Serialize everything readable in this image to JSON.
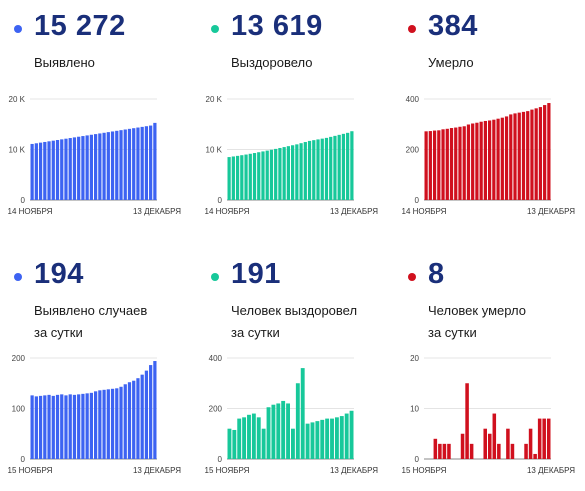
{
  "panels": [
    {
      "value": "15 272",
      "label": "Выявлено",
      "color": "#3d63f2",
      "chart_data": {
        "type": "bar",
        "ylim": [
          0,
          20000
        ],
        "yticks": [
          {
            "v": 0,
            "t": "0"
          },
          {
            "v": 10000,
            "t": "10 K"
          },
          {
            "v": 20000,
            "t": "20 K"
          }
        ],
        "x_start_label": "14 НОЯБРЯ",
        "x_end_label": "13 ДЕКАБРЯ",
        "values": [
          11100,
          11230,
          11360,
          11490,
          11620,
          11750,
          11880,
          12010,
          12140,
          12270,
          12400,
          12530,
          12660,
          12790,
          12920,
          13050,
          13180,
          13310,
          13440,
          13570,
          13700,
          13830,
          13960,
          14090,
          14220,
          14350,
          14480,
          14610,
          14740,
          15272
        ]
      }
    },
    {
      "value": "13 619",
      "label": "Выздоровело",
      "color": "#17c89a",
      "chart_data": {
        "type": "bar",
        "ylim": [
          0,
          20000
        ],
        "yticks": [
          {
            "v": 0,
            "t": "0"
          },
          {
            "v": 10000,
            "t": "10 K"
          },
          {
            "v": 20000,
            "t": "20 K"
          }
        ],
        "x_start_label": "14 НОЯБРЯ",
        "x_end_label": "13 ДЕКАБРЯ",
        "values": [
          8500,
          8620,
          8740,
          8870,
          9000,
          9150,
          9300,
          9460,
          9620,
          9780,
          9950,
          10120,
          10300,
          10480,
          10660,
          10840,
          11020,
          11250,
          11480,
          11700,
          11850,
          12000,
          12150,
          12300,
          12500,
          12700,
          12900,
          13100,
          13300,
          13619
        ]
      }
    },
    {
      "value": "384",
      "label": "Умерло",
      "color": "#d0101e",
      "chart_data": {
        "type": "bar",
        "ylim": [
          0,
          400
        ],
        "yticks": [
          {
            "v": 0,
            "t": "0"
          },
          {
            "v": 200,
            "t": "200"
          },
          {
            "v": 400,
            "t": "400"
          }
        ],
        "x_start_label": "14 НОЯБРЯ",
        "x_end_label": "13 ДЕКАБРЯ",
        "values": [
          272,
          273,
          275,
          276,
          280,
          282,
          285,
          287,
          290,
          292,
          299,
          303,
          306,
          310,
          313,
          315,
          318,
          322,
          326,
          331,
          339,
          343,
          346,
          349,
          352,
          358,
          363,
          368,
          376,
          384
        ]
      }
    },
    {
      "value": "194",
      "label": "Выявлено случаев\nза сутки",
      "color": "#3d63f2",
      "chart_data": {
        "type": "bar",
        "ylim": [
          0,
          200
        ],
        "yticks": [
          {
            "v": 0,
            "t": "0"
          },
          {
            "v": 100,
            "t": "100"
          },
          {
            "v": 200,
            "t": "200"
          }
        ],
        "x_start_label": "15 НОЯБРЯ",
        "x_end_label": "13 ДЕКАБРЯ",
        "values": [
          126,
          124,
          125,
          126,
          127,
          125,
          127,
          128,
          126,
          128,
          127,
          128,
          129,
          130,
          131,
          134,
          136,
          137,
          138,
          139,
          140,
          143,
          148,
          152,
          155,
          160,
          167,
          175,
          186,
          194
        ]
      }
    },
    {
      "value": "191",
      "label": "Человек выздоровел\nза сутки",
      "color": "#17c89a",
      "chart_data": {
        "type": "bar",
        "ylim": [
          0,
          400
        ],
        "yticks": [
          {
            "v": 0,
            "t": "0"
          },
          {
            "v": 200,
            "t": "200"
          },
          {
            "v": 400,
            "t": "400"
          }
        ],
        "x_start_label": "15 НОЯБРЯ",
        "x_end_label": "13 ДЕКАБРЯ",
        "values": [
          120,
          115,
          160,
          165,
          175,
          180,
          165,
          120,
          205,
          215,
          220,
          230,
          220,
          120,
          300,
          360,
          140,
          145,
          150,
          155,
          160,
          160,
          165,
          170,
          180,
          191
        ]
      }
    },
    {
      "value": "8",
      "label": "Человек умерло\nза сутки",
      "color": "#d0101e",
      "chart_data": {
        "type": "bar",
        "ylim": [
          0,
          20
        ],
        "yticks": [
          {
            "v": 0,
            "t": "0"
          },
          {
            "v": 10,
            "t": "10"
          },
          {
            "v": 20,
            "t": "20"
          }
        ],
        "x_start_label": "15 НОЯБРЯ",
        "x_end_label": "13 ДЕКАБРЯ",
        "values": [
          0,
          0,
          4,
          3,
          3,
          3,
          0,
          0,
          5,
          15,
          3,
          0,
          0,
          6,
          5,
          9,
          3,
          0,
          6,
          3,
          0,
          0,
          3,
          6,
          1,
          8,
          8,
          8
        ]
      }
    }
  ]
}
